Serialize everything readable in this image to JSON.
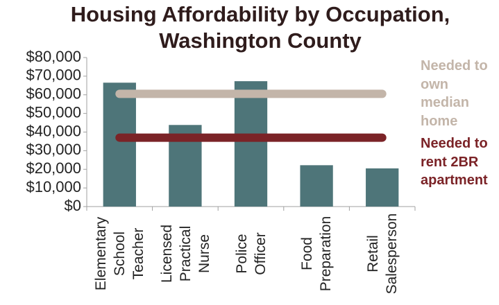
{
  "chart_data": {
    "type": "bar",
    "title": "Housing Affordability by Occupation, Washington County",
    "categories": [
      "Elementary School Teacher",
      "Licensed Practical Nurse",
      "Police Officer",
      "Food Preparation",
      "Retail Salesperson"
    ],
    "values": [
      66500,
      43800,
      67300,
      22200,
      20500
    ],
    "color": "#4e7579",
    "reference_lines": [
      {
        "name": "Needed to own median home",
        "value": 60500,
        "color": "#c3b5a9"
      },
      {
        "name": "Needed to rent 2BR apartment",
        "value": 37000,
        "color": "#7b2327"
      }
    ],
    "ylim": [
      0,
      80000
    ],
    "yticks": [
      {
        "value": 0,
        "label": "$0"
      },
      {
        "value": 10000,
        "label": "$10,000"
      },
      {
        "value": 20000,
        "label": "$20,000"
      },
      {
        "value": 30000,
        "label": "$30,000"
      },
      {
        "value": 40000,
        "label": "$40,000"
      },
      {
        "value": 50000,
        "label": "$50,000"
      },
      {
        "value": 60000,
        "label": "$60,000"
      },
      {
        "value": 70000,
        "label": "$70,000"
      },
      {
        "value": 80000,
        "label": "$80,000"
      }
    ],
    "grid": false
  }
}
